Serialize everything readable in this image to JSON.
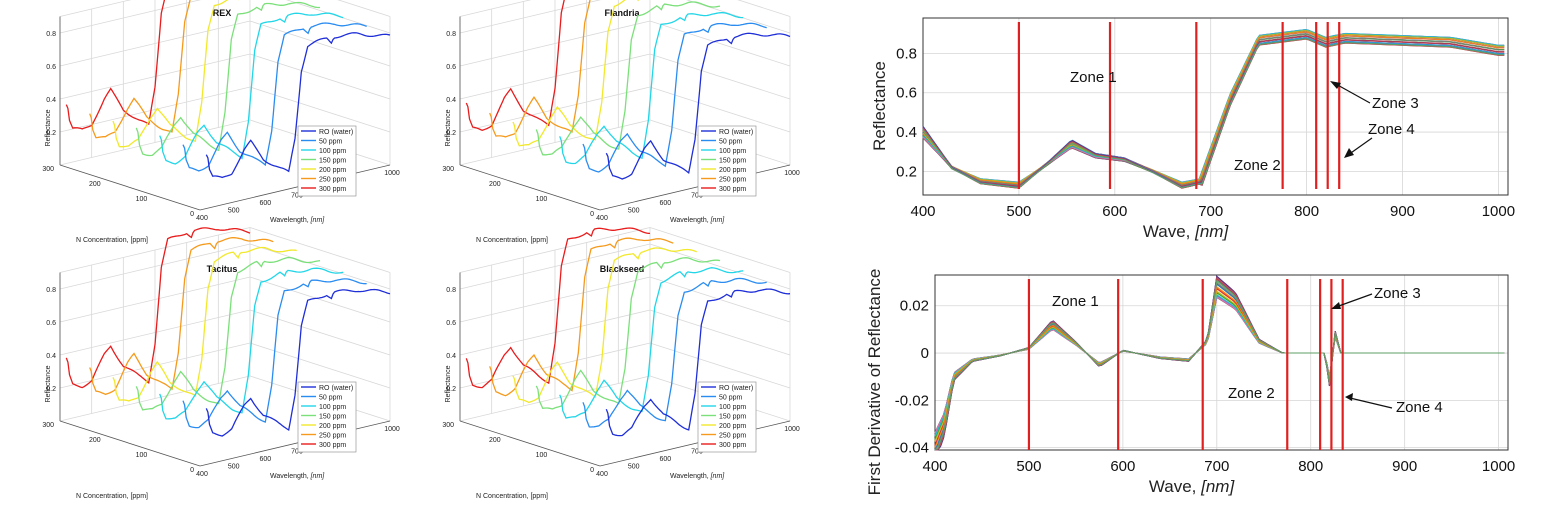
{
  "colors": {
    "ro": "#1f2fd8",
    "p50": "#2a8cf0",
    "p100": "#22d6e8",
    "p150": "#7be07a",
    "p200": "#f2e82c",
    "p250": "#f59a1c",
    "p300": "#e81c1c",
    "zone_line": "#e02020"
  },
  "chart_data": [
    {
      "id": "rex",
      "type": "line3d",
      "title": "REX",
      "zlabel": "Reflectance",
      "xlabel": "N Concentration, [ppm]",
      "ylabel": "Wavelength,",
      "ylabel_unit": "[nm]",
      "z_ticks": [
        "0.8",
        "0.6",
        "0.4",
        "0.2"
      ],
      "conc_ticks": [
        "300",
        "200",
        "100",
        "0"
      ],
      "wave_ticks": [
        "400",
        "500",
        "600",
        "700",
        "1000"
      ],
      "legend": [
        "RO (water)",
        "50 ppm",
        "100 ppm",
        "150 ppm",
        "200 ppm",
        "250 ppm",
        "300 ppm"
      ],
      "concentrations": [
        0,
        50,
        100,
        150,
        200,
        250,
        300
      ]
    },
    {
      "id": "flandria",
      "type": "line3d",
      "title": "Flandria",
      "zlabel": "Reflectance",
      "xlabel": "N Concentration, [ppm]",
      "ylabel": "Wavelength,",
      "ylabel_unit": "[nm]",
      "z_ticks": [
        "0.8",
        "0.6",
        "0.4",
        "0.2"
      ],
      "conc_ticks": [
        "300",
        "200",
        "100",
        "0"
      ],
      "wave_ticks": [
        "400",
        "500",
        "600",
        "700",
        "1000"
      ],
      "legend": [
        "RO (water)",
        "50 ppm",
        "100 ppm",
        "150 ppm",
        "200 ppm",
        "250 ppm",
        "300 ppm"
      ],
      "concentrations": [
        0,
        50,
        100,
        150,
        200,
        250,
        300
      ]
    },
    {
      "id": "tacitus",
      "type": "line3d",
      "title": "Tacitus",
      "zlabel": "Reflectance",
      "xlabel": "N Concentration, [ppm]",
      "ylabel": "Wavelength,",
      "ylabel_unit": "[nm]",
      "z_ticks": [
        "0.8",
        "0.6",
        "0.4",
        "0.2"
      ],
      "conc_ticks": [
        "300",
        "200",
        "100",
        "0"
      ],
      "wave_ticks": [
        "400",
        "500",
        "600",
        "700",
        "1000"
      ],
      "legend": [
        "RO (water)",
        "50 ppm",
        "100 ppm",
        "150 ppm",
        "200 ppm",
        "250 ppm",
        "300 ppm"
      ],
      "concentrations": [
        0,
        50,
        100,
        150,
        200,
        250,
        300
      ]
    },
    {
      "id": "blackseed",
      "type": "line3d",
      "title": "Blackseed",
      "zlabel": "Reflectance",
      "xlabel": "N Concentration, [ppm]",
      "ylabel": "Wavelength,",
      "ylabel_unit": "[nm]",
      "z_ticks": [
        "0.8",
        "0.6",
        "0.4",
        "0.2"
      ],
      "conc_ticks": [
        "300",
        "200",
        "100",
        "0"
      ],
      "wave_ticks": [
        "400",
        "500",
        "600",
        "700",
        "1000"
      ],
      "legend": [
        "RO (water)",
        "50 ppm",
        "100 ppm",
        "150 ppm",
        "200 ppm",
        "250 ppm",
        "300 ppm"
      ],
      "concentrations": [
        0,
        50,
        100,
        150,
        200,
        250,
        300
      ]
    },
    {
      "id": "reflectance",
      "type": "line",
      "ylabel": "Reflectance",
      "xlabel": "Wave,",
      "xlabel_unit": "[nm]",
      "xlim": [
        400,
        1010
      ],
      "ylim": [
        0.08,
        0.98
      ],
      "x_ticks": [
        400,
        500,
        600,
        700,
        800,
        900,
        1000
      ],
      "y_ticks": [
        0.2,
        0.4,
        0.6,
        0.8
      ],
      "y_tick_labels": [
        "0.2",
        "0.4",
        "0.6",
        "0.8"
      ],
      "x_tick_labels": [
        "400",
        "500",
        "600",
        "700",
        "800",
        "900",
        "1000"
      ],
      "zone_lines": [
        500,
        595,
        685,
        775,
        810,
        822,
        834
      ],
      "zones": [
        "Zone  1",
        "Zone  2",
        "Zone  3",
        "Zone  4"
      ],
      "n_series": 30,
      "reference_curve": [
        [
          400,
          0.4
        ],
        [
          430,
          0.22
        ],
        [
          460,
          0.15
        ],
        [
          500,
          0.13
        ],
        [
          530,
          0.24
        ],
        [
          555,
          0.34
        ],
        [
          580,
          0.28
        ],
        [
          610,
          0.26
        ],
        [
          640,
          0.2
        ],
        [
          670,
          0.13
        ],
        [
          690,
          0.15
        ],
        [
          720,
          0.55
        ],
        [
          750,
          0.85
        ],
        [
          800,
          0.88
        ],
        [
          820,
          0.84
        ],
        [
          840,
          0.86
        ],
        [
          950,
          0.84
        ],
        [
          1000,
          0.8
        ]
      ]
    },
    {
      "id": "derivative",
      "type": "line",
      "ylabel": "First Derivative of Reflectance",
      "xlabel": "Wave,",
      "xlabel_unit": "[nm]",
      "xlim": [
        400,
        1010
      ],
      "ylim": [
        -0.041,
        0.033
      ],
      "x_ticks": [
        400,
        500,
        600,
        700,
        800,
        900,
        1000
      ],
      "y_ticks": [
        -0.04,
        -0.02,
        0,
        0.02
      ],
      "y_tick_labels": [
        "-0.04",
        "-0.02",
        "0",
        "0.02"
      ],
      "x_tick_labels": [
        "400",
        "500",
        "600",
        "700",
        "800",
        "900",
        "1000"
      ],
      "zone_lines": [
        500,
        595,
        685,
        775,
        810,
        822,
        834
      ],
      "zones": [
        "Zone  1",
        "Zone  2",
        "Zone  3",
        "Zone  4"
      ],
      "n_series": 30,
      "reference_curve": [
        [
          400,
          -0.04
        ],
        [
          410,
          -0.03
        ],
        [
          420,
          -0.01
        ],
        [
          440,
          -0.003
        ],
        [
          470,
          -0.001
        ],
        [
          500,
          0.002
        ],
        [
          525,
          0.012
        ],
        [
          550,
          0.004
        ],
        [
          575,
          -0.005
        ],
        [
          600,
          0.001
        ],
        [
          640,
          -0.002
        ],
        [
          670,
          -0.003
        ],
        [
          690,
          0.005
        ],
        [
          700,
          0.028
        ],
        [
          720,
          0.022
        ],
        [
          745,
          0.005
        ],
        [
          770,
          0.0
        ],
        [
          815,
          0.0
        ],
        [
          820,
          -0.012
        ],
        [
          826,
          0.008
        ],
        [
          832,
          0.0
        ],
        [
          1000,
          0.0
        ]
      ]
    }
  ]
}
